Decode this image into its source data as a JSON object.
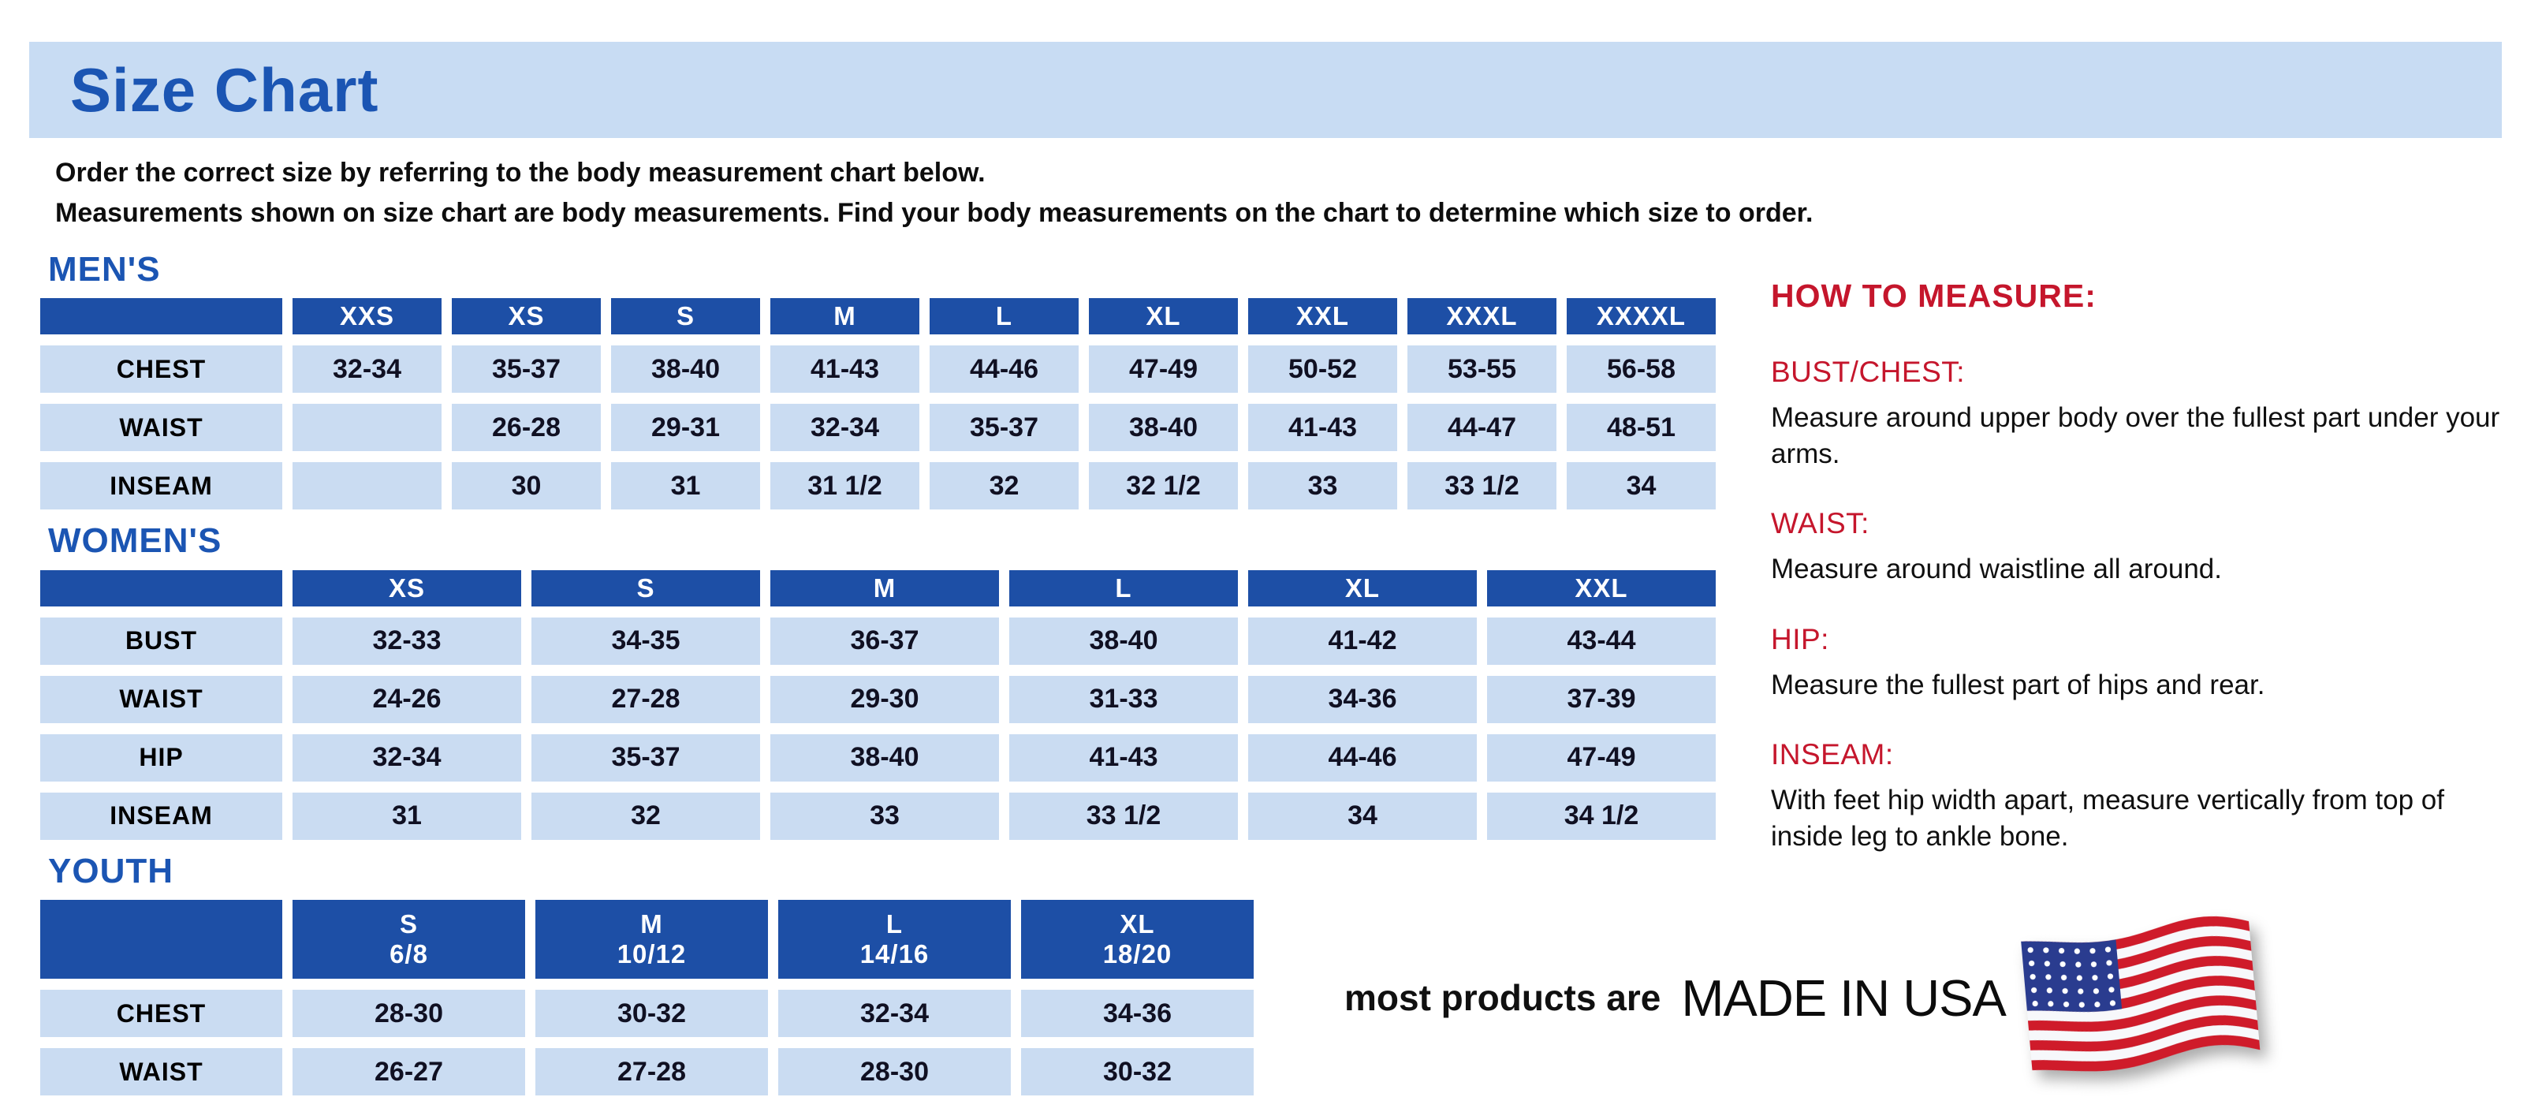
{
  "banner": {
    "title": "Size Chart"
  },
  "intro": {
    "line1": "Order the correct size by referring to the body measurement chart below.",
    "line2": "Measurements shown on size chart are body measurements.  Find your body measurements on the chart to determine which size to order."
  },
  "tables": [
    {
      "id": "mens",
      "heading": "MEN'S",
      "columns": [
        "XXS",
        "XS",
        "S",
        "M",
        "L",
        "XL",
        "XXL",
        "XXXL",
        "XXXXL"
      ],
      "rows": [
        {
          "label": "CHEST",
          "values": [
            "32-34",
            "35-37",
            "38-40",
            "41-43",
            "44-46",
            "47-49",
            "50-52",
            "53-55",
            "56-58"
          ]
        },
        {
          "label": "WAIST",
          "values": [
            "",
            "26-28",
            "29-31",
            "32-34",
            "35-37",
            "38-40",
            "41-43",
            "44-47",
            "48-51"
          ]
        },
        {
          "label": "INSEAM",
          "values": [
            "",
            "30",
            "31",
            "31 1/2",
            "32",
            "32 1/2",
            "33",
            "33 1/2",
            "34"
          ]
        }
      ]
    },
    {
      "id": "womens",
      "heading": "WOMEN'S",
      "columns": [
        "XS",
        "S",
        "M",
        "L",
        "XL",
        "XXL"
      ],
      "rows": [
        {
          "label": "BUST",
          "values": [
            "32-33",
            "34-35",
            "36-37",
            "38-40",
            "41-42",
            "43-44"
          ]
        },
        {
          "label": "WAIST",
          "values": [
            "24-26",
            "27-28",
            "29-30",
            "31-33",
            "34-36",
            "37-39"
          ]
        },
        {
          "label": "HIP",
          "values": [
            "32-34",
            "35-37",
            "38-40",
            "41-43",
            "44-46",
            "47-49"
          ]
        },
        {
          "label": "INSEAM",
          "values": [
            "31",
            "32",
            "33",
            "33 1/2",
            "34",
            "34 1/2"
          ]
        }
      ]
    },
    {
      "id": "youth",
      "heading": "YOUTH",
      "columns": [
        {
          "label": "S",
          "sub": "6/8"
        },
        {
          "label": "M",
          "sub": "10/12"
        },
        {
          "label": "L",
          "sub": "14/16"
        },
        {
          "label": "XL",
          "sub": "18/20"
        }
      ],
      "rows": [
        {
          "label": "CHEST",
          "values": [
            "28-30",
            "30-32",
            "32-34",
            "34-36"
          ]
        },
        {
          "label": "WAIST",
          "values": [
            "26-27",
            "27-28",
            "28-30",
            "30-32"
          ]
        }
      ]
    }
  ],
  "how_to_measure": {
    "heading": "HOW TO MEASURE:",
    "items": [
      {
        "label": "BUST/CHEST:",
        "text": "Measure around upper body over the fullest part under your arms."
      },
      {
        "label": "WAIST:",
        "text": "Measure around waistline all around."
      },
      {
        "label": "HIP:",
        "text": "Measure the fullest part of hips and rear."
      },
      {
        "label": "INSEAM:",
        "text": "With feet hip width apart, measure vertically from top of inside leg to ankle bone."
      }
    ]
  },
  "footer": {
    "prefix": "most products are",
    "emphasis": "MADE IN USA",
    "flag_icon": "us-flag-icon"
  },
  "colors": {
    "banner_bg": "#c8dcf3",
    "heading_blue": "#1b55b3",
    "table_header_bg": "#1d4fa6",
    "cell_bg": "#cadcf2",
    "red": "#c5162c",
    "flag_red": "#cf1b2a",
    "flag_blue": "#2a3c8f"
  }
}
